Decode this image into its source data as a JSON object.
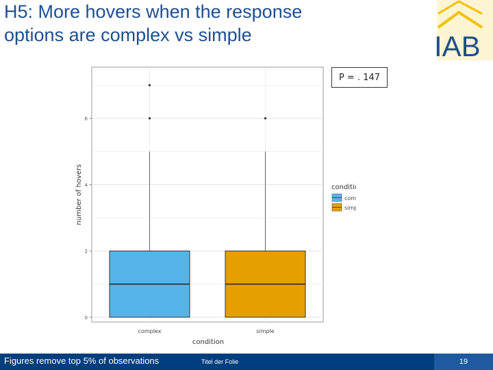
{
  "slide": {
    "title_line1": "H5: More hovers when the response",
    "title_line2": "options are complex vs simple",
    "logo_text": "IAB",
    "p_value": "P = . 147",
    "footer_note": "Figures remove top 5% of observations",
    "footer_title": "Titel der Folie",
    "page_number": "19"
  },
  "colors": {
    "title": "#1d4f91",
    "complex": "#56b4e9",
    "simple": "#e69f00",
    "footer": "#003e7e",
    "logo_blue": "#1f4e8c",
    "logo_yellow": "#f2c100"
  },
  "chart_data": {
    "type": "boxplot",
    "xlabel": "condition",
    "ylabel": "number of hovers",
    "ylim": [
      0,
      7.4
    ],
    "yticks": [
      0,
      2,
      4,
      6
    ],
    "categories": [
      "complex",
      "simple"
    ],
    "legend": {
      "title": "condition",
      "position": "right",
      "entries": [
        "complex",
        "simple"
      ]
    },
    "series": [
      {
        "name": "complex",
        "min": 0,
        "q1": 0,
        "median": 1,
        "q3": 2,
        "whisker_high": 5,
        "outliers": [
          6,
          7
        ]
      },
      {
        "name": "simple",
        "min": 0,
        "q1": 0,
        "median": 1,
        "q3": 2,
        "whisker_high": 5,
        "outliers": [
          6
        ]
      }
    ],
    "grid": true
  }
}
